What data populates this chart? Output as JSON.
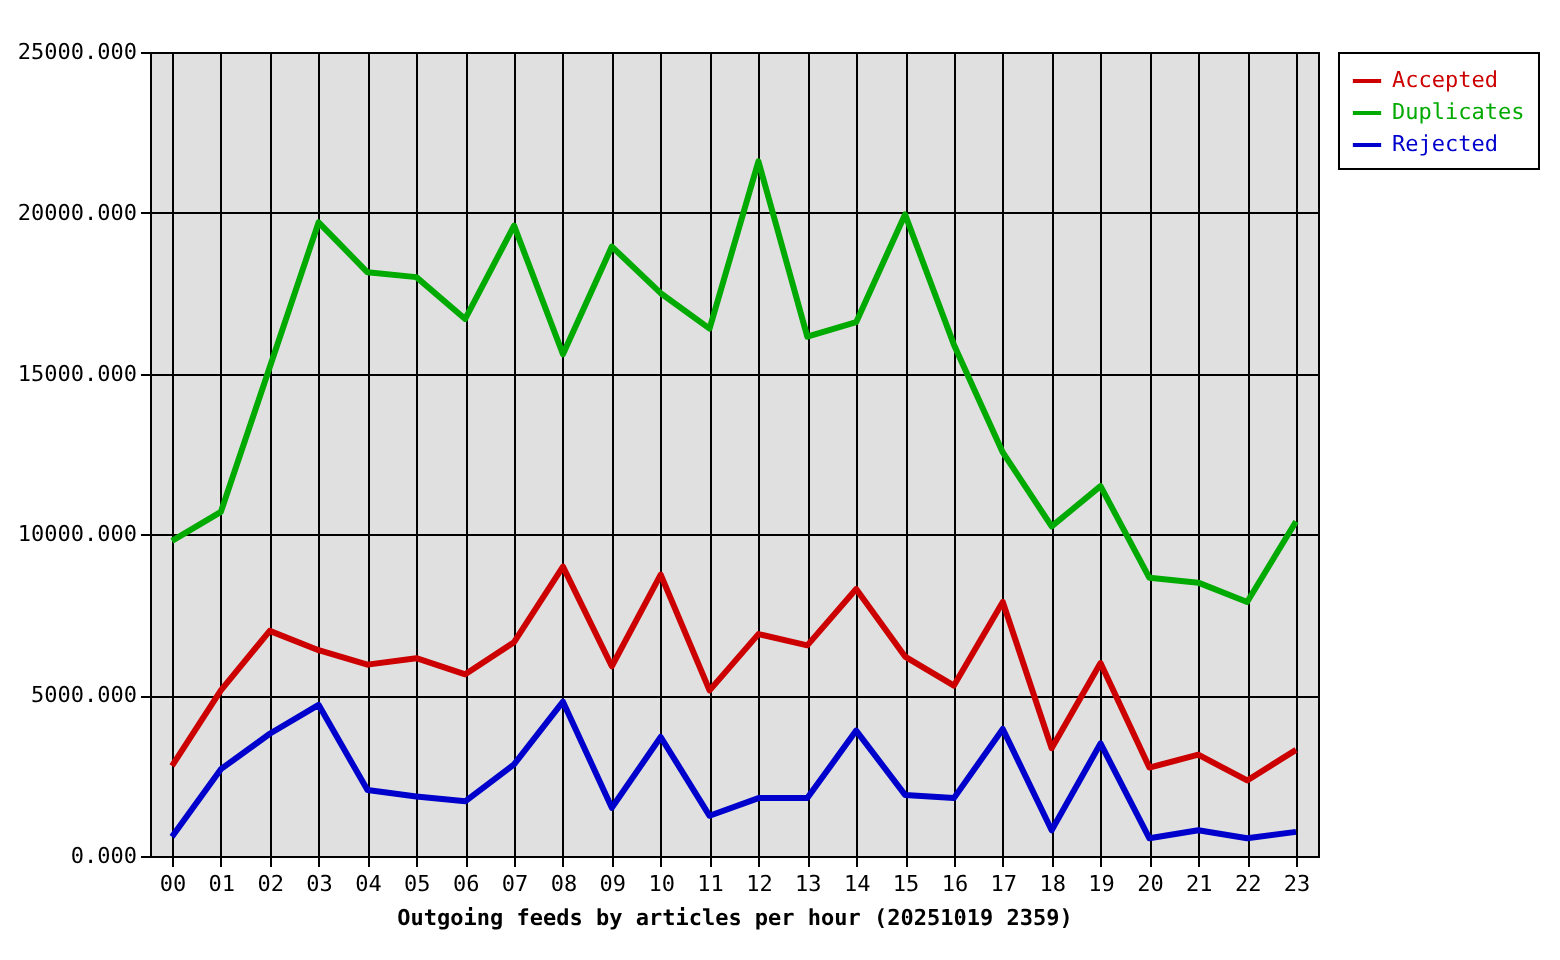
{
  "chart_data": {
    "type": "line",
    "xlabel": "Outgoing feeds by articles per hour (20251019 2359)",
    "categories": [
      "00",
      "01",
      "02",
      "03",
      "04",
      "05",
      "06",
      "07",
      "08",
      "09",
      "10",
      "11",
      "12",
      "13",
      "14",
      "15",
      "16",
      "17",
      "18",
      "19",
      "20",
      "21",
      "22",
      "23"
    ],
    "series": [
      {
        "name": "Accepted",
        "color": "#cc0000",
        "values": [
          2800,
          5150,
          7000,
          6400,
          5950,
          6150,
          5650,
          6650,
          9000,
          5900,
          8750,
          5150,
          6900,
          6550,
          8300,
          6200,
          5300,
          7900,
          3350,
          6000,
          2750,
          3150,
          2350,
          3300
        ]
      },
      {
        "name": "Duplicates",
        "color": "#00aa00",
        "values": [
          9800,
          10700,
          15200,
          19700,
          18150,
          18000,
          16700,
          19600,
          15600,
          18950,
          17500,
          16400,
          21600,
          16150,
          16600,
          19950,
          15900,
          12550,
          10250,
          11500,
          8650,
          8500,
          7900,
          10400
        ]
      },
      {
        "name": "Rejected",
        "color": "#0000cc",
        "values": [
          600,
          2700,
          3800,
          4700,
          2050,
          1850,
          1700,
          2850,
          4800,
          1500,
          3700,
          1250,
          1800,
          1800,
          3900,
          1900,
          1800,
          3950,
          800,
          3500,
          550,
          800,
          550,
          750
        ]
      }
    ],
    "ylim": [
      0,
      25000
    ],
    "yticks": [
      {
        "value": 0,
        "label": "0.000"
      },
      {
        "value": 5000,
        "label": "5000.000"
      },
      {
        "value": 10000,
        "label": "10000.000"
      },
      {
        "value": 15000,
        "label": "15000.000"
      },
      {
        "value": 20000,
        "label": "20000.000"
      },
      {
        "value": 25000,
        "label": "25000.000"
      }
    ],
    "grid": true,
    "legend": "right",
    "line_style": "solid"
  }
}
